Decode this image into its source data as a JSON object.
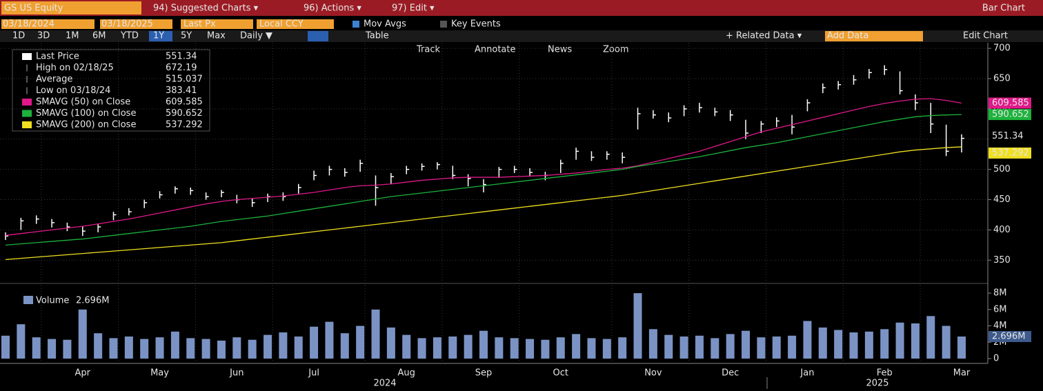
{
  "toolbar": {
    "security": "GS US Equity",
    "menus": [
      "94) Suggested Charts ▾",
      "96) Actions ▾",
      "97) Edit ▾"
    ],
    "view": "Bar Chart",
    "start_date": "03/18/2024",
    "end_date": "03/18/2025",
    "field": "Last Px",
    "currency": "Local CCY",
    "options": [
      "Mov Avgs",
      "Key Events"
    ],
    "periods": [
      "1D",
      "3D",
      "1M",
      "6M",
      "YTD",
      "1Y",
      "5Y",
      "Max"
    ],
    "frequency": "Daily ▼",
    "table": "Table",
    "related": "+ Related Data ▾",
    "add_data": "Add Data",
    "edit_chart": "Edit Chart",
    "tools": [
      "Track",
      "Annotate",
      "News",
      "Zoom"
    ]
  },
  "chart_data": {
    "type": "ohlc",
    "categories": [
      null,
      null,
      null,
      null,
      null,
      "Apr",
      null,
      null,
      null,
      null,
      "May",
      null,
      null,
      null,
      null,
      "Jun",
      null,
      null,
      null,
      null,
      "Jul",
      null,
      null,
      null,
      null,
      null,
      "Aug",
      null,
      null,
      null,
      null,
      "Sep",
      null,
      null,
      null,
      null,
      "Oct",
      null,
      null,
      null,
      null,
      null,
      "Nov",
      null,
      null,
      null,
      null,
      "Dec",
      null,
      null,
      null,
      null,
      "Jan",
      null,
      null,
      null,
      null,
      "Feb",
      null,
      null,
      null,
      null,
      "Mar"
    ],
    "years": [
      "2024",
      "2025"
    ],
    "ohlc": {
      "high": [
        396,
        420,
        424,
        418,
        412,
        406,
        410,
        430,
        436,
        450,
        464,
        472,
        470,
        462,
        466,
        458,
        452,
        460,
        462,
        476,
        498,
        506,
        502,
        516,
        490,
        494,
        506,
        510,
        512,
        506,
        492,
        484,
        504,
        506,
        502,
        496,
        516,
        536,
        530,
        530,
        528,
        602,
        598,
        594,
        606,
        610,
        602,
        598,
        582,
        580,
        586,
        590,
        616,
        642,
        646,
        656,
        666,
        672.19,
        662,
        624,
        610,
        574,
        558
      ],
      "low": [
        383.41,
        400,
        410,
        404,
        398,
        390,
        396,
        416,
        424,
        436,
        452,
        460,
        458,
        450,
        454,
        444,
        438,
        446,
        448,
        460,
        482,
        490,
        488,
        496,
        440,
        476,
        492,
        498,
        500,
        484,
        472,
        462,
        486,
        494,
        488,
        482,
        494,
        516,
        514,
        516,
        510,
        566,
        584,
        578,
        588,
        594,
        588,
        580,
        550,
        560,
        570,
        558,
        596,
        626,
        632,
        640,
        650,
        656,
        624,
        598,
        560,
        522,
        528
      ],
      "close": [
        390,
        415,
        418,
        412,
        405,
        398,
        405,
        425,
        430,
        445,
        458,
        468,
        465,
        455,
        462,
        450,
        445,
        455,
        455,
        470,
        490,
        500,
        495,
        510,
        470,
        488,
        500,
        505,
        508,
        490,
        485,
        475,
        500,
        500,
        495,
        490,
        510,
        530,
        520,
        525,
        520,
        592,
        590,
        585,
        600,
        602,
        595,
        590,
        560,
        575,
        580,
        570,
        610,
        635,
        640,
        648,
        660,
        665,
        630,
        610,
        575,
        530,
        551.34
      ],
      "color": "#ffffff"
    },
    "series": [
      {
        "name": "SMAVG (50)  on Close",
        "color": "#e0198a",
        "values": [
          391,
          394,
          397,
          400,
          403,
          406,
          410,
          414,
          418,
          423,
          428,
          433,
          438,
          443,
          447,
          450,
          452,
          454,
          456,
          459,
          462,
          466,
          470,
          473,
          474,
          476,
          479,
          482,
          484,
          486,
          487,
          487,
          487,
          488,
          489,
          490,
          492,
          494,
          497,
          500,
          502,
          506,
          512,
          518,
          524,
          530,
          538,
          546,
          554,
          562,
          568,
          574,
          580,
          586,
          592,
          598,
          604,
          609,
          613,
          616,
          617,
          614,
          609.585
        ]
      },
      {
        "name": "SMAVG (100)  on Close",
        "color": "#1db33c",
        "values": [
          375,
          377,
          379,
          381,
          383,
          385,
          388,
          391,
          394,
          397,
          400,
          403,
          406,
          410,
          414,
          417,
          420,
          423,
          427,
          431,
          435,
          439,
          443,
          447,
          451,
          455,
          458,
          461,
          464,
          467,
          470,
          473,
          476,
          479,
          482,
          485,
          488,
          491,
          494,
          497,
          500,
          505,
          509,
          513,
          517,
          521,
          526,
          531,
          536,
          540,
          544,
          549,
          554,
          559,
          564,
          569,
          574,
          579,
          583,
          587,
          589,
          590,
          590.652
        ]
      },
      {
        "name": "SMAVG (200)  on Close",
        "color": "#f0e020",
        "values": [
          351,
          353,
          355,
          357,
          359,
          361,
          363,
          365,
          367,
          369,
          371,
          373,
          375,
          377,
          379,
          382,
          385,
          388,
          391,
          394,
          397,
          400,
          403,
          406,
          409,
          412,
          415,
          418,
          421,
          424,
          427,
          430,
          433,
          436,
          439,
          442,
          445,
          448,
          451,
          454,
          457,
          461,
          465,
          469,
          473,
          477,
          481,
          485,
          489,
          493,
          497,
          501,
          505,
          509,
          513,
          517,
          521,
          525,
          529,
          532,
          534,
          536,
          537.292
        ]
      }
    ],
    "legend": [
      "Last Price",
      "High on 02/18/25",
      "Average",
      "Low on 03/18/24"
    ],
    "average": 515.037,
    "ylim": [
      315,
      707
    ],
    "yticks": [
      350,
      400,
      450,
      500,
      550,
      600,
      650,
      700
    ],
    "grid": true,
    "volume": {
      "name": "Volume",
      "color": "#7b93c4",
      "last_label": "2.696M",
      "values": [
        2800000,
        4200000,
        2600000,
        2400000,
        2300000,
        6000000,
        3100000,
        2500000,
        2700000,
        2400000,
        2600000,
        3300000,
        2500000,
        2400000,
        2200000,
        2600000,
        2300000,
        2900000,
        3200000,
        2700000,
        3900000,
        4500000,
        3100000,
        4000000,
        6000000,
        3800000,
        2900000,
        2500000,
        2600000,
        2700000,
        2900000,
        3400000,
        2600000,
        2500000,
        2400000,
        2300000,
        2600000,
        3000000,
        2500000,
        2400000,
        2600000,
        8000000,
        3600000,
        2900000,
        2700000,
        2800000,
        2500000,
        3000000,
        3400000,
        2600000,
        2700000,
        2800000,
        4600000,
        3800000,
        3500000,
        3200000,
        3300000,
        3600000,
        4400000,
        4300000,
        5200000,
        4000000,
        2696000
      ],
      "ylim": [
        0,
        8600000
      ],
      "yticks": [
        0,
        {
          "value": 2000000,
          "label": "2M"
        },
        {
          "value": 4000000,
          "label": "4M"
        },
        {
          "value": 6000000,
          "label": "6M"
        },
        {
          "value": 8000000,
          "label": "8M"
        }
      ]
    }
  }
}
